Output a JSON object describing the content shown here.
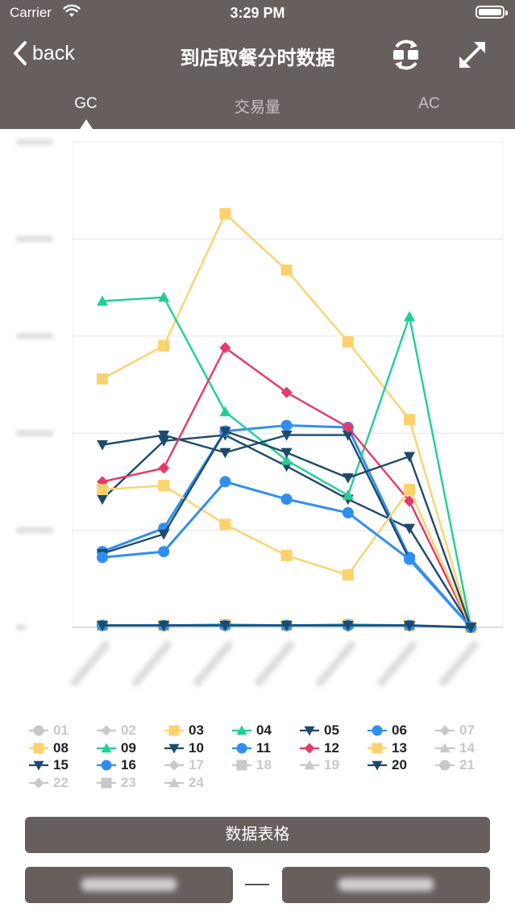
{
  "status_bar": {
    "carrier": "Carrier",
    "time": "3:29 PM"
  },
  "nav": {
    "back_label": "back",
    "title": "到店取餐分时数据"
  },
  "tabs": [
    {
      "label": "GC",
      "active": true
    },
    {
      "label": "交易量",
      "active": false
    },
    {
      "label": "AC",
      "active": false
    }
  ],
  "colors": {
    "header_bg": "#675e5e",
    "grid": "#e8e8e8",
    "inactive": "#c8c8c8",
    "yellow": "#fdd26e",
    "green": "#1fcf96",
    "navy": "#1e4a6b",
    "blue": "#2f8ff0",
    "pink": "#e6396a"
  },
  "chart_data": {
    "type": "line",
    "x": [
      1,
      2,
      3,
      4,
      5,
      6,
      7
    ],
    "ylim": [
      0,
      500
    ],
    "grid": true,
    "series": [
      {
        "name": "03",
        "color": "#fdd26e",
        "marker": "square",
        "values": [
          2,
          2,
          3,
          2,
          3,
          2,
          0
        ]
      },
      {
        "name": "04",
        "color": "#1fcf96",
        "marker": "triangle-up",
        "values": [
          2,
          2,
          3,
          2,
          3,
          2,
          0
        ]
      },
      {
        "name": "05",
        "color": "#1e4a6b",
        "marker": "triangle-down",
        "values": [
          132,
          192,
          198,
          166,
          132,
          102,
          0
        ]
      },
      {
        "name": "06",
        "color": "#2f8ff0",
        "marker": "circle",
        "values": [
          78,
          102,
          202,
          208,
          206,
          72,
          0
        ]
      },
      {
        "name": "08",
        "color": "#fdd26e",
        "marker": "square",
        "values": [
          256,
          290,
          426,
          368,
          294,
          214,
          0
        ]
      },
      {
        "name": "09",
        "color": "#1fcf96",
        "marker": "triangle-up",
        "values": [
          336,
          340,
          222,
          172,
          136,
          320,
          0
        ]
      },
      {
        "name": "10",
        "color": "#1e4a6b",
        "marker": "triangle-down",
        "values": [
          188,
          198,
          180,
          198,
          198,
          70,
          0
        ]
      },
      {
        "name": "11",
        "color": "#2f8ff0",
        "marker": "circle",
        "values": [
          2,
          2,
          2,
          2,
          2,
          2,
          0
        ]
      },
      {
        "name": "12",
        "color": "#e6396a",
        "marker": "diamond",
        "values": [
          150,
          164,
          288,
          242,
          206,
          130,
          0
        ]
      },
      {
        "name": "13",
        "color": "#fdd26e",
        "marker": "square",
        "values": [
          142,
          146,
          106,
          74,
          54,
          142,
          0
        ]
      },
      {
        "name": "15",
        "color": "#1e4a6b",
        "marker": "triangle-down",
        "values": [
          76,
          96,
          202,
          180,
          154,
          176,
          0
        ]
      },
      {
        "name": "16",
        "color": "#2f8ff0",
        "marker": "circle",
        "values": [
          72,
          78,
          150,
          132,
          118,
          70,
          0
        ]
      },
      {
        "name": "20",
        "color": "#1e4a6b",
        "marker": "triangle-down",
        "values": [
          2,
          2,
          2,
          2,
          2,
          2,
          0
        ]
      }
    ]
  },
  "legend": [
    {
      "label": "01",
      "active": false,
      "marker": "circle",
      "color": "#c8c8c8"
    },
    {
      "label": "02",
      "active": false,
      "marker": "diamond",
      "color": "#c8c8c8"
    },
    {
      "label": "03",
      "active": true,
      "marker": "square",
      "color": "#fdd26e"
    },
    {
      "label": "04",
      "active": true,
      "marker": "triangle-up",
      "color": "#1fcf96"
    },
    {
      "label": "05",
      "active": true,
      "marker": "triangle-down",
      "color": "#1e4a6b"
    },
    {
      "label": "06",
      "active": true,
      "marker": "circle",
      "color": "#2f8ff0"
    },
    {
      "label": "07",
      "active": false,
      "marker": "diamond",
      "color": "#c8c8c8"
    },
    {
      "label": "08",
      "active": true,
      "marker": "square",
      "color": "#fdd26e"
    },
    {
      "label": "09",
      "active": true,
      "marker": "triangle-up",
      "color": "#1fcf96"
    },
    {
      "label": "10",
      "active": true,
      "marker": "triangle-down",
      "color": "#1e4a6b"
    },
    {
      "label": "11",
      "active": true,
      "marker": "circle",
      "color": "#2f8ff0"
    },
    {
      "label": "12",
      "active": true,
      "marker": "diamond",
      "color": "#e6396a"
    },
    {
      "label": "13",
      "active": true,
      "marker": "square",
      "color": "#fdd26e"
    },
    {
      "label": "14",
      "active": false,
      "marker": "triangle-up",
      "color": "#c8c8c8"
    },
    {
      "label": "15",
      "active": true,
      "marker": "triangle-down",
      "color": "#1e4a6b"
    },
    {
      "label": "16",
      "active": true,
      "marker": "circle",
      "color": "#2f8ff0"
    },
    {
      "label": "17",
      "active": false,
      "marker": "diamond",
      "color": "#c8c8c8"
    },
    {
      "label": "18",
      "active": false,
      "marker": "square",
      "color": "#c8c8c8"
    },
    {
      "label": "19",
      "active": false,
      "marker": "triangle-up",
      "color": "#c8c8c8"
    },
    {
      "label": "20",
      "active": true,
      "marker": "triangle-down",
      "color": "#1e4a6b"
    },
    {
      "label": "21",
      "active": false,
      "marker": "circle",
      "color": "#c8c8c8"
    },
    {
      "label": "22",
      "active": false,
      "marker": "diamond",
      "color": "#c8c8c8"
    },
    {
      "label": "23",
      "active": false,
      "marker": "square",
      "color": "#c8c8c8"
    },
    {
      "label": "24",
      "active": false,
      "marker": "triangle-up",
      "color": "#c8c8c8"
    }
  ],
  "buttons": {
    "data_table_label": "数据表格"
  }
}
